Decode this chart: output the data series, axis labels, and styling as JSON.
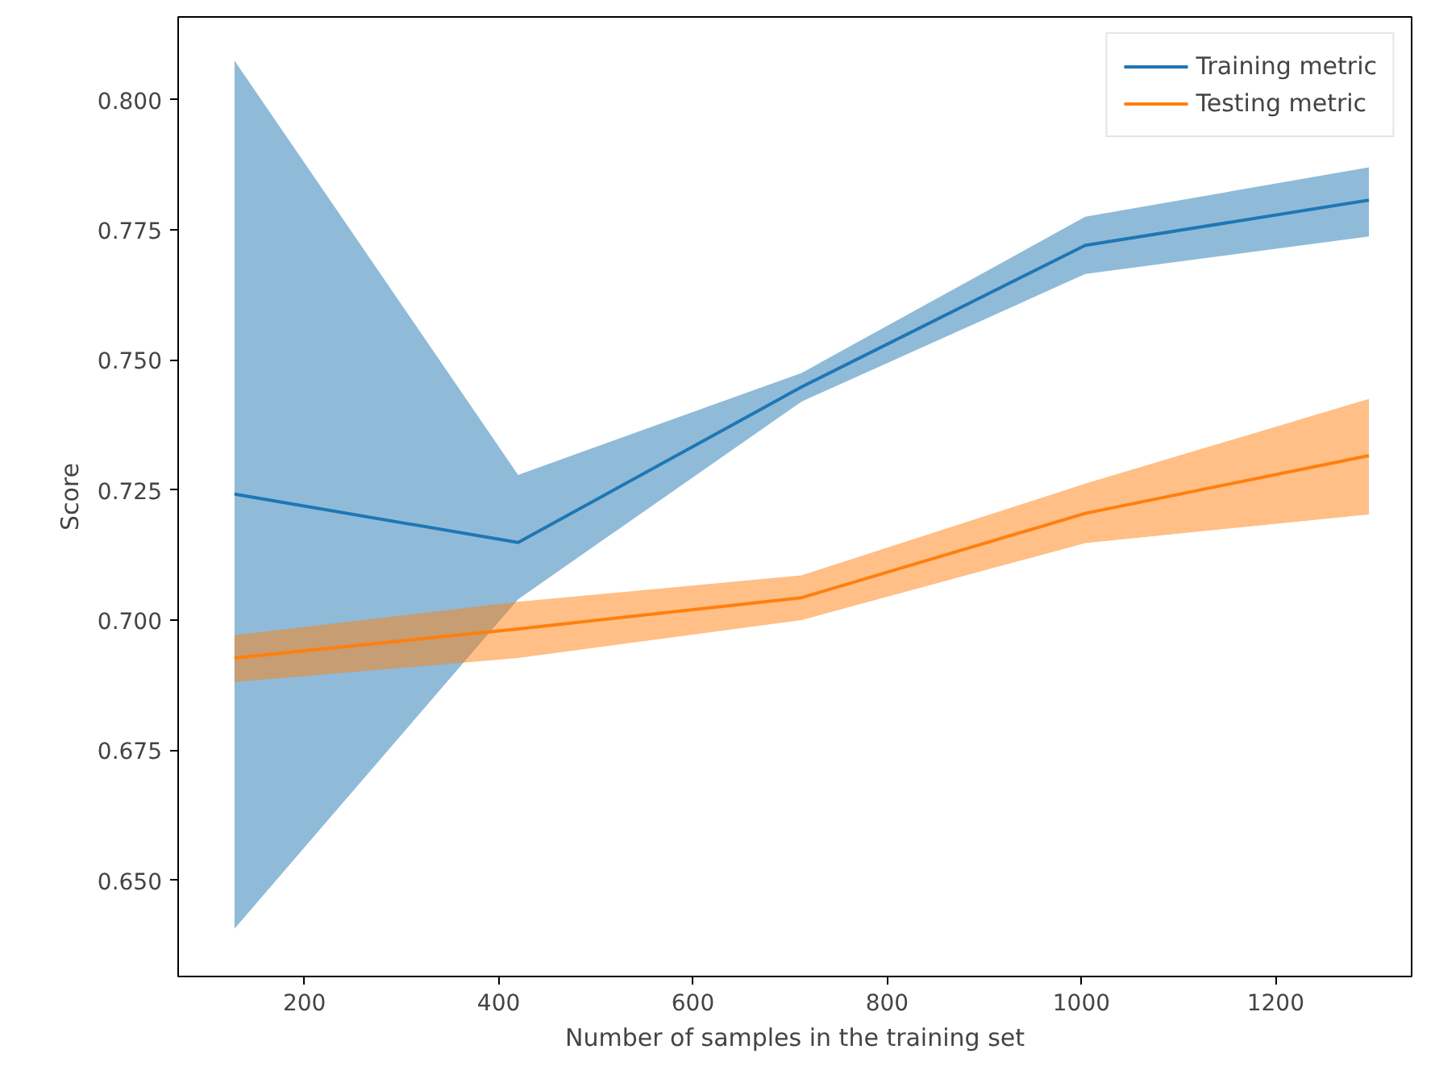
{
  "chart_data": {
    "type": "line",
    "xlabel": "Number of samples in the training set",
    "ylabel": "Score",
    "x": [
      128,
      420,
      712,
      1004,
      1296
    ],
    "series": [
      {
        "name": "Training metric",
        "color": "#1f77b4",
        "values": [
          0.7242,
          0.7149,
          0.7448,
          0.772,
          0.7807
        ],
        "lower": [
          0.6407,
          0.704,
          0.742,
          0.7665,
          0.7737
        ],
        "upper": [
          0.8075,
          0.7279,
          0.7475,
          0.7775,
          0.787
        ]
      },
      {
        "name": "Testing metric",
        "color": "#ff7f0e",
        "values": [
          0.6927,
          0.6983,
          0.7043,
          0.7205,
          0.7316
        ],
        "lower": [
          0.6881,
          0.6927,
          0.7,
          0.7148,
          0.7203
        ],
        "upper": [
          0.6971,
          0.7035,
          0.7086,
          0.7262,
          0.7425
        ]
      }
    ],
    "xlim": [
      70,
      1340
    ],
    "ylim": [
      0.6315,
      0.8159
    ],
    "xticks": [
      200,
      400,
      600,
      800,
      1000,
      1200
    ],
    "yticks": [
      {
        "value": 0.65,
        "label": "0.650"
      },
      {
        "value": 0.675,
        "label": "0.675"
      },
      {
        "value": 0.7,
        "label": "0.700"
      },
      {
        "value": 0.725,
        "label": "0.725"
      },
      {
        "value": 0.75,
        "label": "0.750"
      },
      {
        "value": 0.775,
        "label": "0.775"
      },
      {
        "value": 0.8,
        "label": "0.800"
      }
    ],
    "grid": false,
    "legend": "top right",
    "marker": "none",
    "line_style": "solid"
  }
}
